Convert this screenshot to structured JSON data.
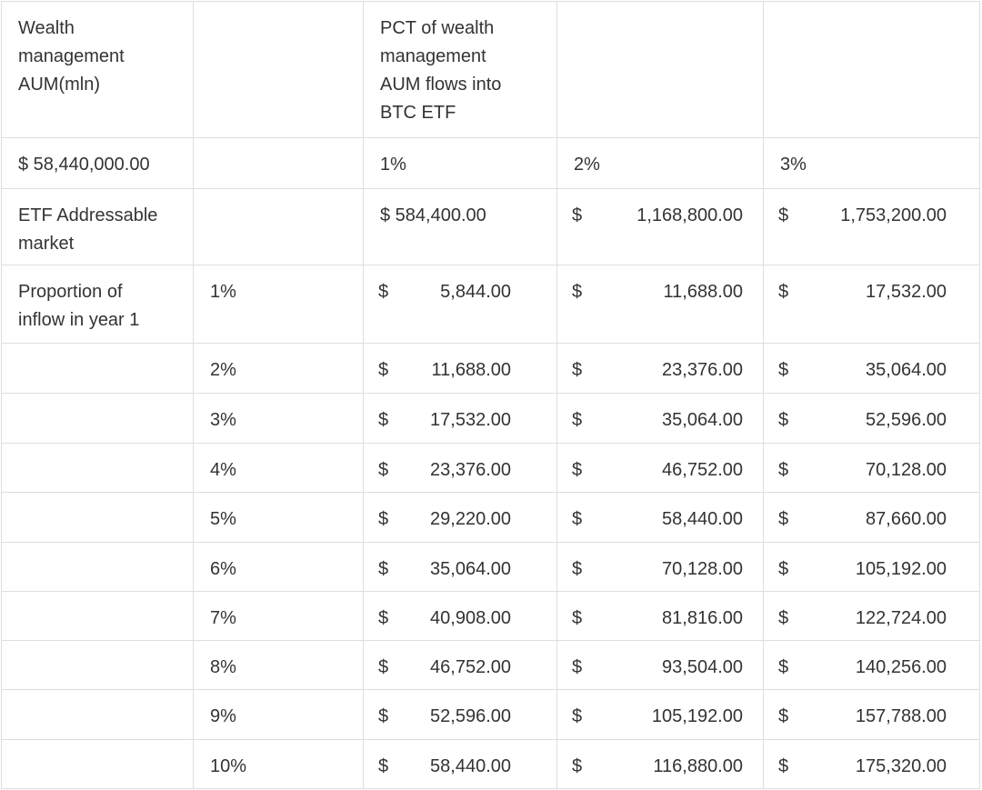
{
  "table": {
    "rows": [
      [
        [
          "Wealth",
          "management",
          "AUM(mln)"
        ],
        null,
        [
          "PCT of wealth",
          "management",
          "AUM flows into",
          "BTC ETF"
        ],
        null,
        null
      ],
      [
        "$ 58,440,000.00",
        null,
        "1%",
        "2%",
        "3%"
      ],
      [
        [
          "ETF Addressable",
          "market"
        ],
        null,
        "$ 584,400.00",
        {
          "currency": "$",
          "amount": "1,168,800.00"
        },
        {
          "currency": "$",
          "amount": "1,753,200.00"
        }
      ],
      [
        [
          "Proportion of",
          "inflow in year 1"
        ],
        "1%",
        {
          "currency": "$",
          "amount": "5,844.00"
        },
        {
          "currency": "$",
          "amount": "11,688.00"
        },
        {
          "currency": "$",
          "amount": "17,532.00"
        }
      ],
      [
        null,
        "2%",
        {
          "currency": "$",
          "amount": "11,688.00"
        },
        {
          "currency": "$",
          "amount": "23,376.00"
        },
        {
          "currency": "$",
          "amount": "35,064.00"
        }
      ],
      [
        null,
        "3%",
        {
          "currency": "$",
          "amount": "17,532.00"
        },
        {
          "currency": "$",
          "amount": "35,064.00"
        },
        {
          "currency": "$",
          "amount": "52,596.00"
        }
      ],
      [
        null,
        "4%",
        {
          "currency": "$",
          "amount": "23,376.00"
        },
        {
          "currency": "$",
          "amount": "46,752.00"
        },
        {
          "currency": "$",
          "amount": "70,128.00"
        }
      ],
      [
        null,
        "5%",
        {
          "currency": "$",
          "amount": "29,220.00"
        },
        {
          "currency": "$",
          "amount": "58,440.00"
        },
        {
          "currency": "$",
          "amount": "87,660.00"
        }
      ],
      [
        null,
        "6%",
        {
          "currency": "$",
          "amount": "35,064.00"
        },
        {
          "currency": "$",
          "amount": "70,128.00"
        },
        {
          "currency": "$",
          "amount": "105,192.00"
        }
      ],
      [
        null,
        "7%",
        {
          "currency": "$",
          "amount": "40,908.00"
        },
        {
          "currency": "$",
          "amount": "81,816.00"
        },
        {
          "currency": "$",
          "amount": "122,724.00"
        }
      ],
      [
        null,
        "8%",
        {
          "currency": "$",
          "amount": "46,752.00"
        },
        {
          "currency": "$",
          "amount": "93,504.00"
        },
        {
          "currency": "$",
          "amount": "140,256.00"
        }
      ],
      [
        null,
        "9%",
        {
          "currency": "$",
          "amount": "52,596.00"
        },
        {
          "currency": "$",
          "amount": "105,192.00"
        },
        {
          "currency": "$",
          "amount": "157,788.00"
        }
      ],
      [
        null,
        "10%",
        {
          "currency": "$",
          "amount": "58,440.00"
        },
        {
          "currency": "$",
          "amount": "116,880.00"
        },
        {
          "currency": "$",
          "amount": "175,320.00"
        }
      ]
    ]
  }
}
